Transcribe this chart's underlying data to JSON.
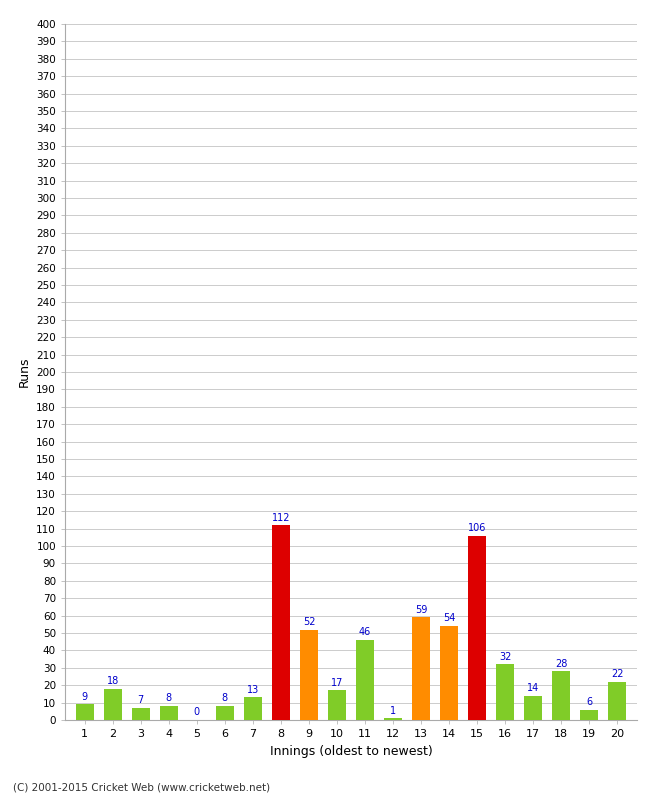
{
  "innings": [
    1,
    2,
    3,
    4,
    5,
    6,
    7,
    8,
    9,
    10,
    11,
    12,
    13,
    14,
    15,
    16,
    17,
    18,
    19,
    20
  ],
  "values": [
    9,
    18,
    7,
    8,
    0,
    8,
    13,
    112,
    52,
    17,
    46,
    1,
    59,
    54,
    106,
    32,
    14,
    28,
    6,
    22
  ],
  "colors": [
    "#80cc28",
    "#80cc28",
    "#80cc28",
    "#80cc28",
    "#80cc28",
    "#80cc28",
    "#80cc28",
    "#dd0000",
    "#ff8c00",
    "#80cc28",
    "#80cc28",
    "#80cc28",
    "#ff8c00",
    "#ff8c00",
    "#dd0000",
    "#80cc28",
    "#80cc28",
    "#80cc28",
    "#80cc28",
    "#80cc28"
  ],
  "title": "",
  "xlabel": "Innings (oldest to newest)",
  "ylabel": "Runs",
  "ylim": [
    0,
    400
  ],
  "ytick_step": 10,
  "background_color": "#ffffff",
  "grid_color": "#cccccc",
  "label_color": "#0000cc",
  "label_fontsize": 7,
  "footer": "(C) 2001-2015 Cricket Web (www.cricketweb.net)",
  "bar_width": 0.65
}
